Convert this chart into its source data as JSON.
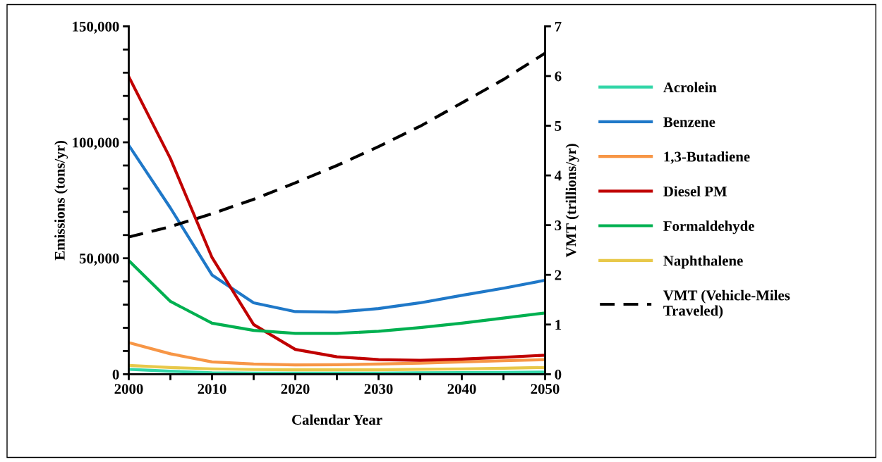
{
  "chart_data": {
    "type": "line",
    "xlabel": "Calendar Year",
    "ylabel": "Emissions (tons/yr)",
    "y2label": "VMT (trillions/yr)",
    "x": [
      2000,
      2005,
      2010,
      2015,
      2020,
      2025,
      2030,
      2035,
      2040,
      2045,
      2050
    ],
    "series": [
      {
        "name": "Acrolein",
        "color": "#33d6a8",
        "values": [
          2100,
          1300,
          600,
          500,
          500,
          500,
          500,
          600,
          700,
          800,
          900
        ]
      },
      {
        "name": "Benzene",
        "color": "#1f78c8",
        "values": [
          98700,
          71700,
          42800,
          30800,
          27000,
          26800,
          28300,
          30800,
          34000,
          37100,
          40500
        ]
      },
      {
        "name": "1,3-Butadiene",
        "color": "#f79646",
        "values": [
          13600,
          8800,
          5300,
          4400,
          4000,
          4100,
          4400,
          4800,
          5300,
          5800,
          6300
        ]
      },
      {
        "name": "Diesel PM",
        "color": "#c00000",
        "values": [
          128300,
          93000,
          50300,
          21400,
          10700,
          7500,
          6300,
          6000,
          6500,
          7300,
          8200
        ]
      },
      {
        "name": "Formaldehyde",
        "color": "#00b050",
        "values": [
          49000,
          31400,
          22000,
          18900,
          17600,
          17600,
          18500,
          20100,
          22000,
          24200,
          26400
        ]
      },
      {
        "name": "Naphthalene",
        "color": "#e8c84a",
        "values": [
          3800,
          2900,
          2300,
          2000,
          1900,
          1900,
          1900,
          2100,
          2300,
          2600,
          2900
        ]
      },
      {
        "name": "VMT (Vehicle-Miles\nTraveled)",
        "color": "#000000",
        "axis": "y2",
        "line_style": "dashed",
        "values": [
          2.76,
          2.97,
          3.23,
          3.52,
          3.85,
          4.2,
          4.58,
          4.99,
          5.46,
          5.93,
          6.46
        ]
      }
    ],
    "xlim": [
      2000,
      2050
    ],
    "xticks": [
      2000,
      {
        "value": 2005,
        "label": null
      },
      2010,
      {
        "value": 2015,
        "label": null
      },
      2020,
      {
        "value": 2025,
        "label": null
      },
      2030,
      {
        "value": 2035,
        "label": null
      },
      2040,
      {
        "value": 2045,
        "label": null
      },
      2050
    ],
    "ylim": [
      0,
      150000
    ],
    "yticks": [
      0,
      {
        "value": 10000,
        "label": null
      },
      {
        "value": 20000,
        "label": null
      },
      {
        "value": 30000,
        "label": null
      },
      {
        "value": 40000,
        "label": null
      },
      {
        "value": 50000,
        "label": "50,000"
      },
      {
        "value": 60000,
        "label": null
      },
      {
        "value": 70000,
        "label": null
      },
      {
        "value": 80000,
        "label": null
      },
      {
        "value": 90000,
        "label": null
      },
      {
        "value": 100000,
        "label": "100,000"
      },
      {
        "value": 110000,
        "label": null
      },
      {
        "value": 120000,
        "label": null
      },
      {
        "value": 130000,
        "label": null
      },
      {
        "value": 140000,
        "label": null
      },
      {
        "value": 150000,
        "label": "150,000"
      }
    ],
    "y2lim": [
      0,
      7
    ],
    "y2ticks": [
      0,
      1,
      2,
      3,
      4,
      5,
      6,
      7
    ],
    "grid": false,
    "legend": "right",
    "line_style": "solid"
  }
}
